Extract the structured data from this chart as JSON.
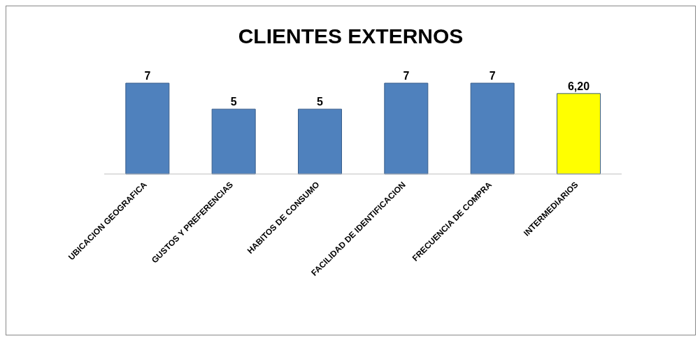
{
  "chart_data": {
    "type": "bar",
    "title": "CLIENTES EXTERNOS",
    "categories": [
      "UBICACION GEOGRAFICA",
      "GUSTOS Y PREFERENCIAS",
      "HABITOS DE CONSUMO",
      "FACILIDAD DE IDENTIFICACION",
      "FRECUENCIA DE COMPRA",
      "INTERMEDIARIOS"
    ],
    "values": [
      7,
      5,
      5,
      7,
      7,
      6.2
    ],
    "colors": [
      "#4f81bd",
      "#4f81bd",
      "#4f81bd",
      "#4f81bd",
      "#4f81bd",
      "#ffff00"
    ],
    "value_labels": [
      "7",
      "5",
      "5",
      "7",
      "7",
      "6,20"
    ]
  }
}
